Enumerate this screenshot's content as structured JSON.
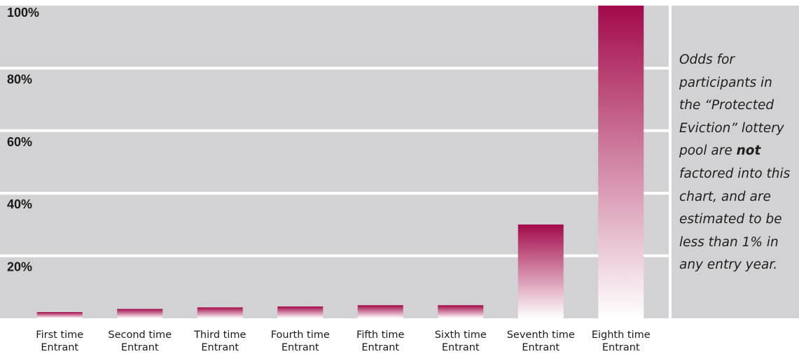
{
  "colors": {
    "panel_bg": "#d2d2d4",
    "gridline": "#ffffff",
    "bar_top": "#a30a4a",
    "bar_bottom": "#ffffff",
    "text": "#1a1a1a"
  },
  "note": {
    "before": "Odds for participants in the “Protected Eviction” lottery pool are ",
    "emphasis": "not",
    "after": " factored into this chart, and are estimated to be less than 1% in any entry year."
  },
  "chart_data": {
    "type": "bar",
    "title": "",
    "xlabel": "",
    "ylabel": "",
    "ylim": [
      0,
      100
    ],
    "yticks": [
      20,
      40,
      60,
      80,
      100
    ],
    "ytick_labels": [
      "20%",
      "40%",
      "60%",
      "80%",
      "100%"
    ],
    "grid": true,
    "categories": [
      [
        "First time",
        "Entrant"
      ],
      [
        "Second time",
        "Entrant"
      ],
      [
        "Third time",
        "Entrant"
      ],
      [
        "Fourth time",
        "Entrant"
      ],
      [
        "Fifth time",
        "Entrant"
      ],
      [
        "Sixth time",
        "Entrant"
      ],
      [
        "Seventh time",
        "Entrant"
      ],
      [
        "Eighth time",
        "Entrant"
      ]
    ],
    "values": [
      2,
      3,
      3.5,
      3.8,
      4.2,
      4.2,
      30,
      100
    ]
  }
}
